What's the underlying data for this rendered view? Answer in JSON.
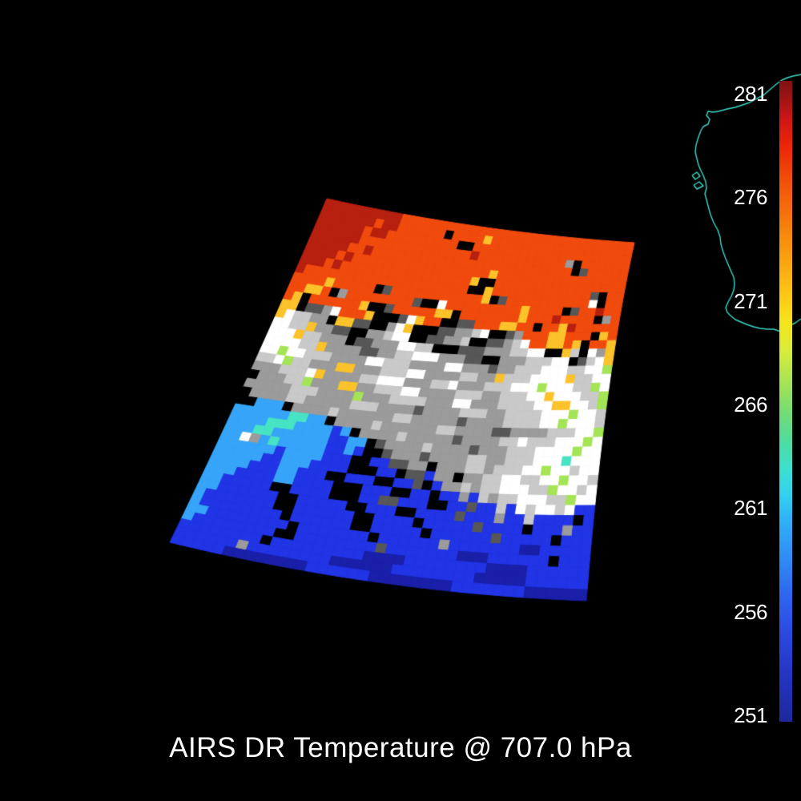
{
  "title": "AIRS DR Temperature @ 707.0 hPa",
  "background_color": "#000000",
  "colorbar": {
    "ticks": [
      "281",
      "276",
      "271",
      "266",
      "261",
      "256",
      "251"
    ],
    "gradient_stops": [
      [
        0,
        "#7f1212"
      ],
      [
        0.025,
        "#9c1414"
      ],
      [
        0.06,
        "#cf1616"
      ],
      [
        0.1,
        "#ec2408"
      ],
      [
        0.155,
        "#f24f0a"
      ],
      [
        0.21,
        "#f5740c"
      ],
      [
        0.27,
        "#f99d0e"
      ],
      [
        0.33,
        "#fdc513"
      ],
      [
        0.375,
        "#f7e41a"
      ],
      [
        0.42,
        "#d9ec39"
      ],
      [
        0.47,
        "#a8e354"
      ],
      [
        0.52,
        "#72dc76"
      ],
      [
        0.565,
        "#4cdda2"
      ],
      [
        0.605,
        "#3edfcf"
      ],
      [
        0.645,
        "#33d2ee"
      ],
      [
        0.685,
        "#2fb2f6"
      ],
      [
        0.745,
        "#2f8cf5"
      ],
      [
        0.805,
        "#2f64ef"
      ],
      [
        0.865,
        "#2b48de"
      ],
      [
        0.93,
        "#2434c2"
      ],
      [
        1,
        "#1e289c"
      ]
    ]
  },
  "coastline": {
    "label": "western-australia-coastline",
    "color": "#3cd9c9",
    "segments": [
      [
        [
          1000,
          93
        ],
        [
          990,
          95
        ],
        [
          983,
          97
        ],
        [
          976,
          100
        ],
        [
          968,
          106
        ],
        [
          961,
          112
        ],
        [
          953,
          119
        ],
        [
          945,
          123
        ],
        [
          936,
          128
        ],
        [
          927,
          131
        ],
        [
          918,
          134
        ],
        [
          908,
          136
        ],
        [
          897,
          139
        ],
        [
          890,
          140
        ],
        [
          884,
          139
        ],
        [
          882,
          144
        ],
        [
          886,
          149
        ],
        [
          884,
          155
        ],
        [
          878,
          158
        ],
        [
          875,
          163
        ],
        [
          872,
          171
        ],
        [
          869,
          181
        ],
        [
          868,
          190
        ],
        [
          870,
          198
        ],
        [
          872,
          206
        ],
        [
          875,
          213
        ],
        [
          878,
          219
        ],
        [
          881,
          227
        ],
        [
          882,
          235
        ],
        [
          880,
          242
        ],
        [
          882,
          249
        ],
        [
          884,
          257
        ],
        [
          887,
          268
        ],
        [
          891,
          278
        ],
        [
          896,
          287
        ],
        [
          899,
          296
        ],
        [
          900,
          305
        ],
        [
          903,
          315
        ],
        [
          906,
          323
        ],
        [
          909,
          330
        ],
        [
          912,
          337
        ],
        [
          916,
          346
        ],
        [
          917,
          354
        ],
        [
          916,
          362
        ],
        [
          913,
          370
        ],
        [
          909,
          377
        ],
        [
          906,
          384
        ],
        [
          908,
          390
        ],
        [
          912,
          394
        ],
        [
          918,
          399
        ],
        [
          925,
          402
        ],
        [
          932,
          405
        ],
        [
          941,
          408
        ],
        [
          949,
          410
        ],
        [
          958,
          411
        ],
        [
          966,
          411
        ],
        [
          972,
          413
        ],
        [
          975,
          414
        ]
      ],
      [
        [
          987,
          406
        ],
        [
          993,
          403
        ],
        [
          1000,
          398
        ]
      ],
      [
        [
          864,
          219
        ],
        [
          870,
          215
        ],
        [
          874,
          220
        ],
        [
          868,
          224
        ],
        [
          864,
          219
        ]
      ],
      [
        [
          866,
          231
        ],
        [
          873,
          227
        ],
        [
          878,
          232
        ],
        [
          870,
          236
        ],
        [
          866,
          231
        ]
      ]
    ]
  },
  "chart_data": {
    "type": "heatmap",
    "title": "AIRS DR Temperature @ 707.0 hPa",
    "pressure_level_hpa": 707.0,
    "instrument": "AIRS DR Temperature",
    "colorbar_ticks": [
      281,
      276,
      271,
      266,
      261,
      256,
      251
    ],
    "legend_position": "right",
    "grid": "off",
    "footprint": {
      "top_left": [
        408,
        248
      ],
      "top_right": [
        792,
        303
      ],
      "bottom_left": [
        212,
        677
      ],
      "bottom_right": [
        732,
        750
      ],
      "edge_controls": {
        "top": [
          600,
          290.5
        ],
        "bottom": [
          472,
          740.5
        ],
        "left": [
          307.5,
          481.5
        ],
        "right": [
          754,
          473.5
        ]
      }
    },
    "palette": {
      "R": "#b7200f",
      "r": "#f14a0d",
      "y": "#fcc22a",
      "w": "#ffffff",
      "l": "#c9c9c9",
      "g": "#9b9b9b",
      "d": "#575757",
      "k": "#000000",
      "G": "#a4e455",
      "t": "#47e4c4",
      "c": "#36a5f9",
      "b": "#2134e6",
      "B": "#191fa8"
    },
    "grid_cols": 40,
    "grid_rows": 40,
    "rows_rle": [
      "R10r30",
      "R7r1R2r6k1r4y1r18",
      "R6r1R2r9k2r20",
      "R6r14R1r11g1k1r6",
      "R5r2R1r25k1d1r5",
      "R4r1R1r17y1r16",
      "R3r1R1r16y1k2r16",
      "R1r20k2y1r12d1k1r2",
      "r4y1r5k1d1r11y1k1d1r10w1k1r2",
      "r2y2r1k1g1r8d1k2w1r9y1r4k1d1r2R1r2",
      "r1y1k1r6y1k2d1r5y2k1r7y1r3R1r4k1g1r1",
      "y2k1d2g1w1r3y1k3d1w1y1r2k2d2r3y2r2k1r2y1R1r5",
      "y1w1l2g2k1y2d2k2g1w1y1k3d2g2l1w1k2d1g1r3y2r3k1y1r1",
      "w2l2y1g2d2k2g2l1w2k2d2g2l1k2d2g1l1w1r2y2r1y1k1r2y1",
      "w3y1l2g3k1d2g3w2l2k3d3g3l2w2k2y1l1k1w1g1y1",
      "w4l2y1g4d2g2l2w3g3d2k2g3l3w2k1d1l1w1y1",
      "w2G1w2l3g4w2l3g4w2g3d1g2l3w3l2w2G1",
      "l2w1G1l2g3y2g3l3w2g4l2g2y1l3w4y1l2w2",
      "g3l3w1y1g4l2w3g3l2w1g3l3w3G1w3l2G1w1",
      "k1g3l2G1g3y2g2l3w2g4l3g2l3w2y1w3l2G1",
      "g5l3g4G1g3l4g3w2g3l4w2y2w2l1G1",
      "k1g4l2g5l3g4d1g4l3g2l4w3G1w2l1",
      "k2c3k1g4l1g6l2g5d1g4l4w2G1w3l1",
      "c6t2c2k1g4l1g6l2g4d2g4l3w2G1",
      "c4t3c4b1c1k1g4l1g5d1g4l2w1l3w3G1w1",
      "c3t2c6b2c2k1d1g4l1g4d1g3l3w4G1w2",
      "c2w1g1c1t1c5b2c1b1k2d1g3d1g4l2g2l3w3t1w3",
      "c6b1c4b3k2b2d2g2k1g3l2g1l3w2G1w2l1w2",
      "c5b2c3b4k3b2k1d2b1g2k1g2l2w2l2w2G1w2l1",
      "c4b3c2b3k2b3k2b2d1k1b1g2l1g1l2w3l2G1w2l1w1",
      "c3b4c2b4k3b3k2b2k1b2g1b1l1g1l2w3l2G1w2",
      "c2b5k2b4k3b2d2b3k2b2d1b2l1b1w1l1w2l1w1b2",
      "c2b6k2b5k2b3k2b4d1b3g1b2l1b4k1b1",
      "c1b7k2b6k2b4k1b5d1b4k1b3g1b2",
      "c1b8k1b6k2b5k1b6d1b5k1b3",
      "c2b8k1b7k1b6g1b7B2b5",
      "c1b8k2b8d1b7B3b6k1b3",
      "b8k1b9B4b8B4b6",
      "b6g1b8B6b8B5b6",
      "b5B8b6B8b7B6"
    ]
  }
}
